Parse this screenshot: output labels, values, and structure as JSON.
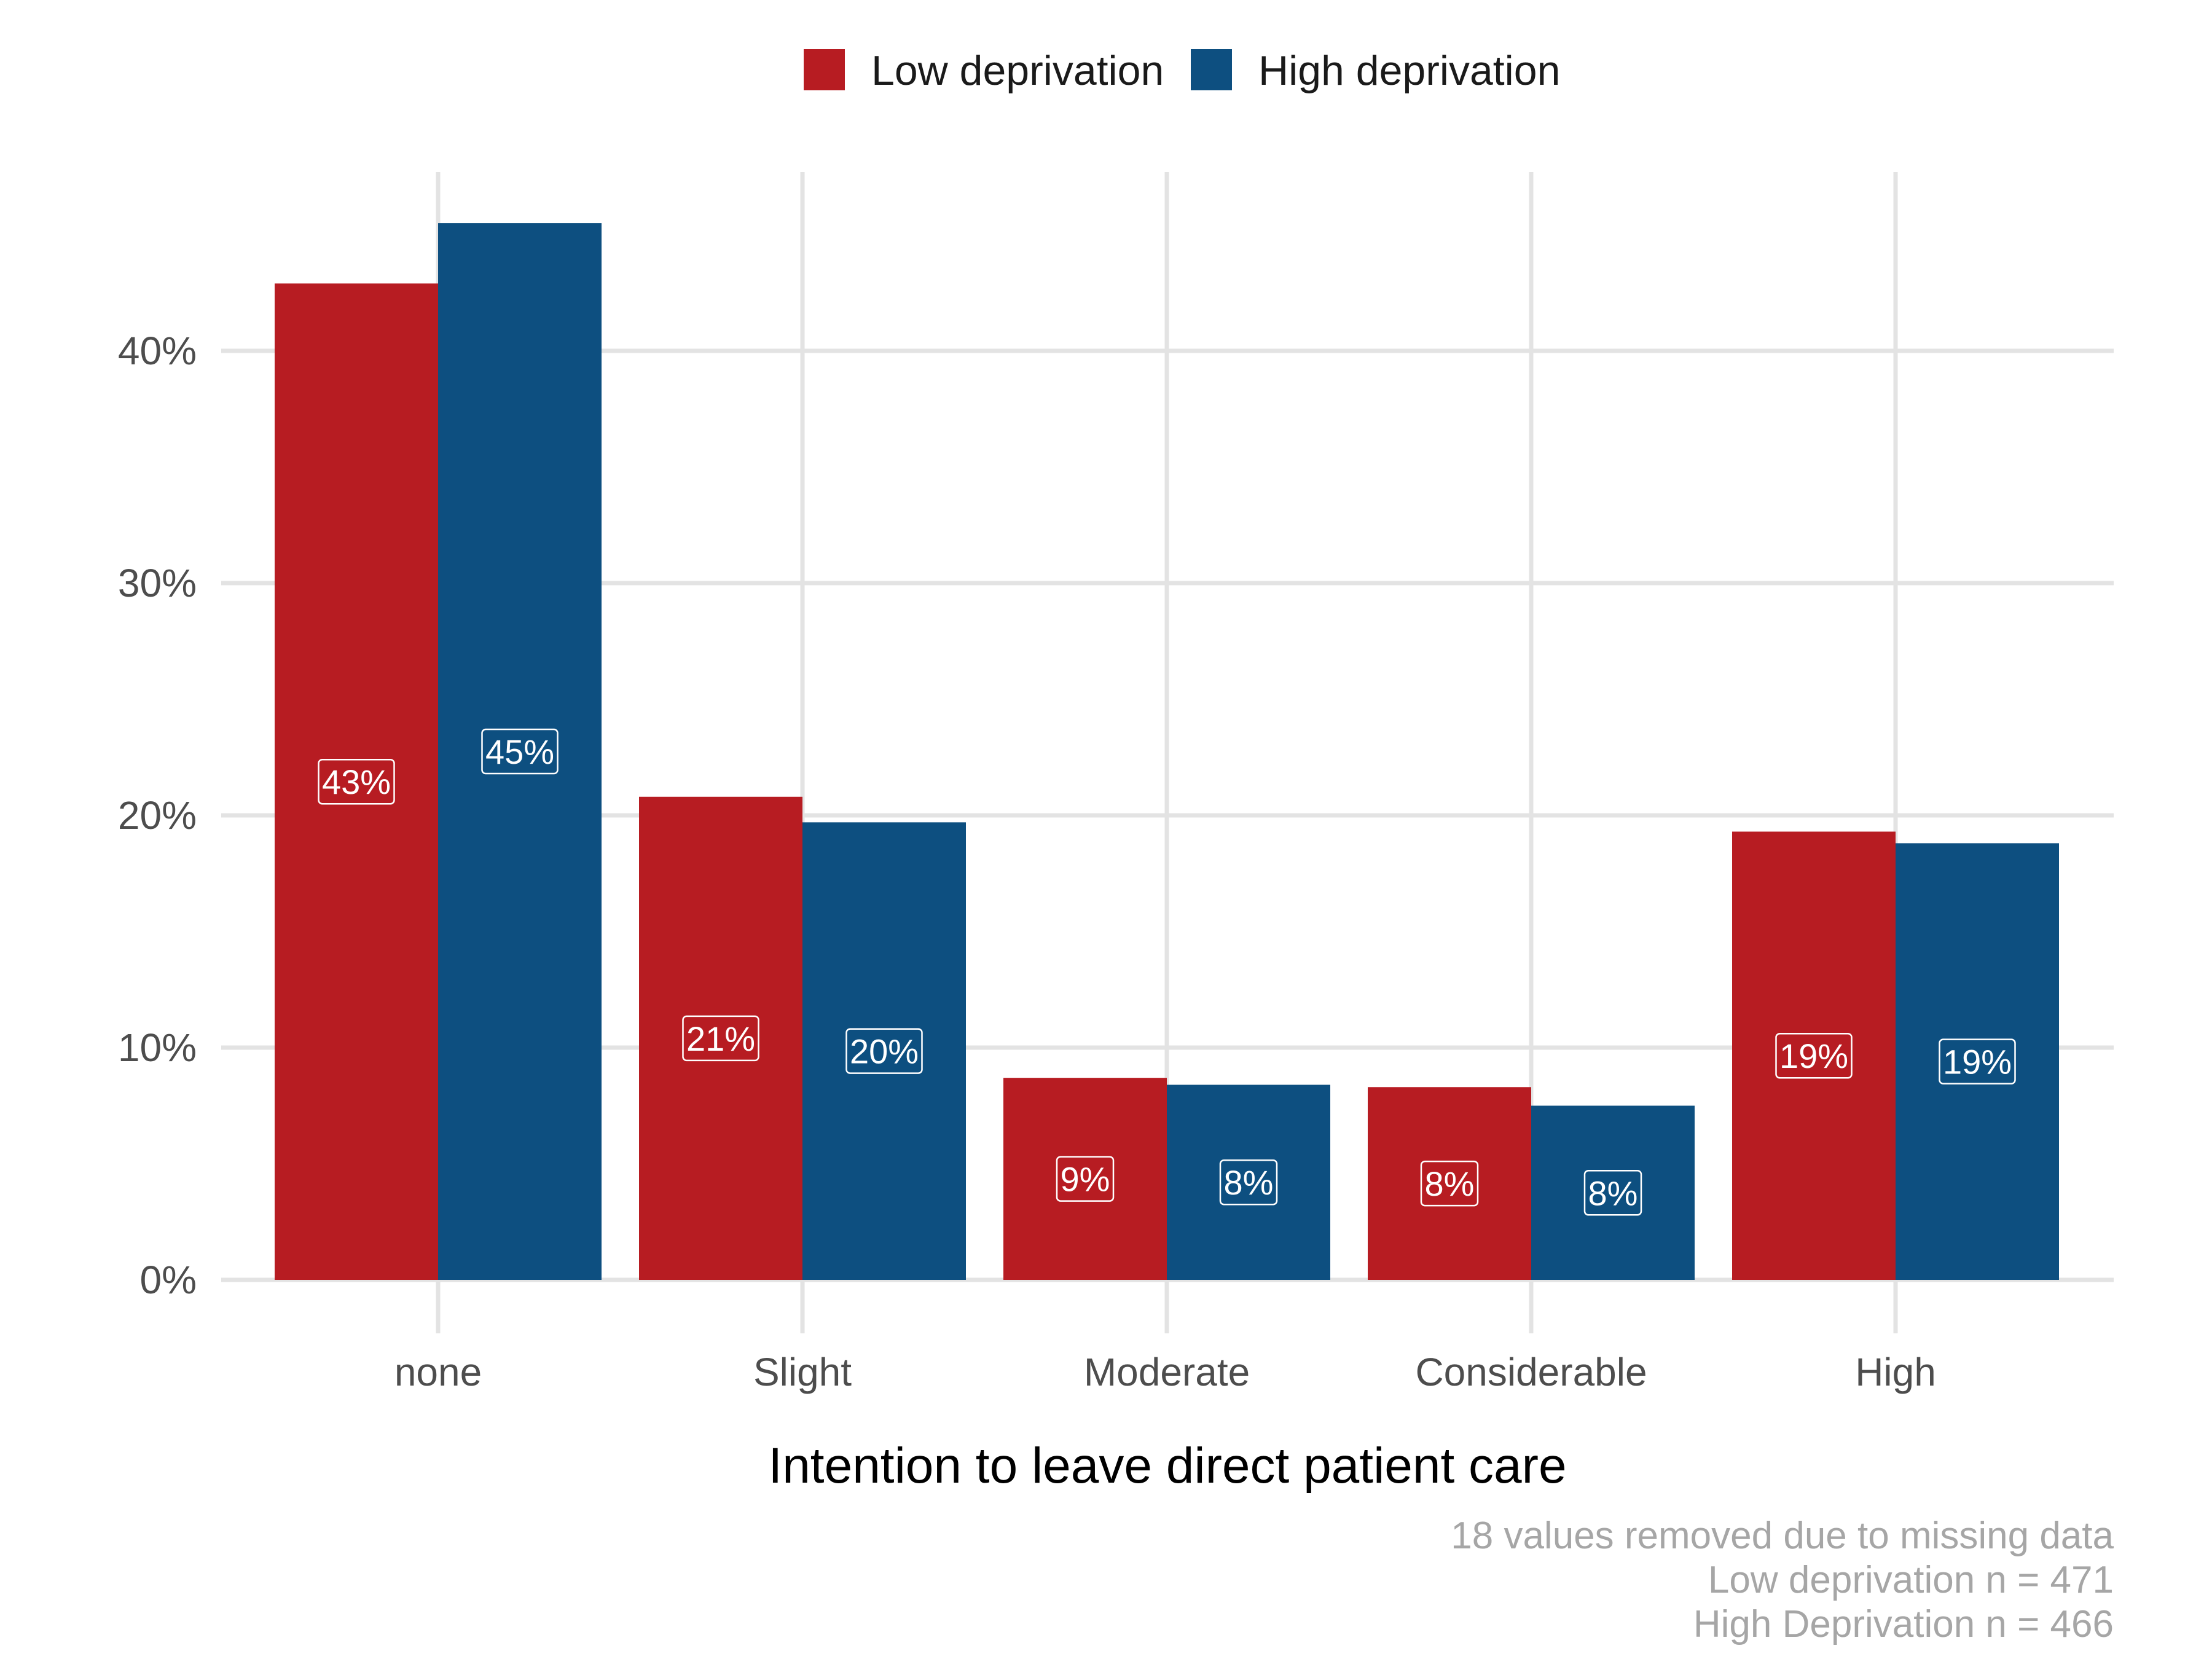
{
  "chart_data": {
    "type": "bar",
    "title": "",
    "xlabel": "Intention to leave direct patient care",
    "ylabel": "",
    "categories": [
      "none",
      "Slight",
      "Moderate",
      "Considerable",
      "High"
    ],
    "series": [
      {
        "name": "Low deprivation",
        "color": "#b71c22",
        "values": [
          0.429,
          0.208,
          0.087,
          0.083,
          0.193
        ],
        "labels": [
          "43%",
          "21%",
          "9%",
          "8%",
          "19%"
        ]
      },
      {
        "name": "High deprivation",
        "color": "#0d4f80",
        "values": [
          0.455,
          0.197,
          0.084,
          0.075,
          0.188
        ],
        "labels": [
          "45%",
          "20%",
          "8%",
          "8%",
          "19%"
        ]
      }
    ],
    "ylim": [
      0,
      0.48
    ],
    "yticks": [
      0,
      0.1,
      0.2,
      0.3,
      0.4
    ],
    "ytick_labels": [
      "0%",
      "10%",
      "20%",
      "30%",
      "40%"
    ],
    "grid": true,
    "legend_position": "top",
    "caption": [
      "18 values removed due to missing data",
      "Low deprivation n = 471",
      "High Deprivation n = 466"
    ]
  }
}
